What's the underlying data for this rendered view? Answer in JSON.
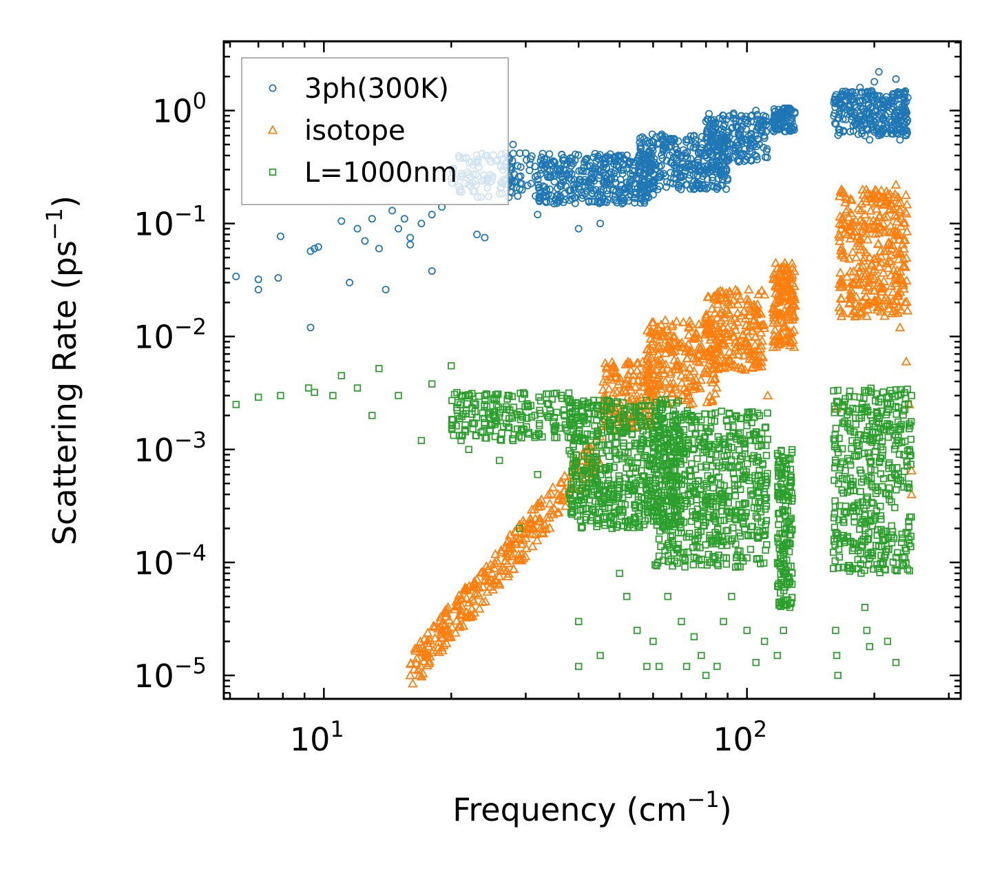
{
  "chart_data": {
    "type": "scatter",
    "title": "",
    "xlabel": "Frequency (cm",
    "xlabel_sup": "−1",
    "xlabel_suffix": ")",
    "ylabel": "Scattering Rate (ps",
    "ylabel_sup": "−1",
    "ylabel_suffix": ")",
    "xscale": "log",
    "yscale": "log",
    "xlim": [
      5.8,
      320
    ],
    "ylim": [
      6.2e-06,
      4.1
    ],
    "x_ticks": [
      {
        "base": "10",
        "exp": "1",
        "value": 10
      },
      {
        "base": "10",
        "exp": "2",
        "value": 100
      }
    ],
    "y_ticks": [
      {
        "base": "10",
        "exp": "0",
        "value": 1
      },
      {
        "base": "10",
        "exp": "−1",
        "value": 0.1
      },
      {
        "base": "10",
        "exp": "−2",
        "value": 0.01
      },
      {
        "base": "10",
        "exp": "−3",
        "value": 0.001
      },
      {
        "base": "10",
        "exp": "−4",
        "value": 0.0001
      },
      {
        "base": "10",
        "exp": "−5",
        "value": 1e-05
      }
    ],
    "legend": {
      "position": "top-left",
      "entries": [
        {
          "label": "3ph(300K)",
          "marker": "circle",
          "color": "#1f77b4"
        },
        {
          "label": "isotope",
          "marker": "triangle",
          "color": "#ff7f0e"
        },
        {
          "label": "L=1000nm",
          "marker": "square",
          "color": "#2ca02c"
        }
      ]
    },
    "series": [
      {
        "name": "3ph(300K)",
        "marker": "circle",
        "color": "#1f77b4",
        "points": [
          [
            6.2,
            0.034
          ],
          [
            7,
            0.032
          ],
          [
            7,
            0.026
          ],
          [
            7.8,
            0.033
          ],
          [
            7.9,
            0.077
          ],
          [
            9.3,
            0.012
          ],
          [
            9.3,
            0.057
          ],
          [
            9.5,
            0.06
          ],
          [
            9.7,
            0.062
          ],
          [
            11,
            0.105
          ],
          [
            11.5,
            0.03
          ],
          [
            12,
            0.09
          ],
          [
            12.5,
            0.07
          ],
          [
            13,
            0.11
          ],
          [
            13.5,
            0.06
          ],
          [
            14,
            0.026
          ],
          [
            14.5,
            0.13
          ],
          [
            15,
            0.09
          ],
          [
            15.5,
            0.11
          ],
          [
            16,
            0.065
          ],
          [
            16,
            0.075
          ],
          [
            17,
            0.1
          ],
          [
            18,
            0.038
          ],
          [
            18,
            0.12
          ],
          [
            19,
            0.14
          ],
          [
            20,
            0.25
          ],
          [
            21,
            0.2
          ],
          [
            22,
            0.22
          ],
          [
            23,
            0.08
          ],
          [
            24,
            0.075
          ],
          [
            25,
            0.25
          ],
          [
            27,
            0.35
          ],
          [
            28,
            0.5
          ],
          [
            30,
            0.42
          ],
          [
            32,
            0.12
          ],
          [
            35,
            0.15
          ],
          [
            40,
            0.09
          ],
          [
            45,
            0.1
          ],
          [
            50,
            0.2
          ],
          [
            60,
            0.18
          ],
          [
            70,
            0.4
          ],
          [
            80,
            0.8
          ],
          [
            90,
            0.25
          ],
          [
            95,
            0.7
          ],
          [
            105,
            1.0
          ],
          [
            120,
            0.95
          ],
          [
            125,
            0.72
          ],
          [
            165,
            1.25
          ],
          [
            170,
            0.95
          ],
          [
            180,
            0.9
          ],
          [
            185,
            1.6
          ],
          [
            190,
            0.6
          ],
          [
            195,
            0.55
          ],
          [
            200,
            1.8
          ],
          [
            205,
            2.2
          ],
          [
            215,
            1.2
          ],
          [
            220,
            0.7
          ],
          [
            225,
            1.9
          ],
          [
            230,
            0.55
          ],
          [
            240,
            1.3
          ]
        ],
        "bands": [
          {
            "x": [
              20,
              32
            ],
            "y": [
              0.17,
              0.42
            ],
            "n": 120
          },
          {
            "x": [
              32,
              60
            ],
            "y": [
              0.15,
              0.42
            ],
            "n": 360
          },
          {
            "x": [
              55,
              90
            ],
            "y": [
              0.2,
              0.62
            ],
            "n": 320
          },
          {
            "x": [
              80,
              112
            ],
            "y": [
              0.35,
              0.95
            ],
            "n": 200
          },
          {
            "x": [
              115,
              130
            ],
            "y": [
              0.65,
              1.05
            ],
            "n": 90
          },
          {
            "x": [
              160,
              240
            ],
            "y": [
              0.6,
              1.5
            ],
            "n": 280
          }
        ]
      },
      {
        "name": "isotope",
        "marker": "triangle",
        "color": "#ff7f0e",
        "points": [
          [
            16,
            1e-05
          ],
          [
            18,
            1.6e-05
          ],
          [
            19,
            2.5e-05
          ],
          [
            21,
            3.5e-05
          ],
          [
            23,
            6e-05
          ],
          [
            25,
            8e-05
          ],
          [
            27,
            0.00012
          ],
          [
            29,
            0.00016
          ],
          [
            31,
            0.0002
          ],
          [
            33,
            0.00018
          ],
          [
            35,
            0.0003
          ],
          [
            38,
            0.00045
          ],
          [
            41,
            0.0008
          ],
          [
            45,
            0.0013
          ],
          [
            50,
            0.004
          ],
          [
            55,
            0.005
          ],
          [
            60,
            0.003
          ],
          [
            65,
            0.008
          ],
          [
            70,
            0.0045
          ],
          [
            75,
            0.01
          ],
          [
            80,
            0.015
          ],
          [
            85,
            0.008
          ],
          [
            90,
            0.02
          ],
          [
            95,
            0.025
          ],
          [
            100,
            0.009
          ],
          [
            105,
            0.006
          ],
          [
            112,
            0.003
          ],
          [
            118,
            0.04
          ],
          [
            122,
            0.012
          ],
          [
            128,
            0.035
          ],
          [
            163,
            0.0023
          ],
          [
            165,
            0.08
          ],
          [
            170,
            0.05
          ],
          [
            175,
            0.02
          ],
          [
            180,
            0.015
          ],
          [
            185,
            0.03
          ],
          [
            190,
            0.12
          ],
          [
            195,
            0.05
          ],
          [
            200,
            0.02
          ],
          [
            205,
            0.03
          ],
          [
            210,
            0.1
          ],
          [
            215,
            0.18
          ],
          [
            220,
            0.15
          ],
          [
            225,
            0.22
          ],
          [
            230,
            0.012
          ],
          [
            238,
            0.006
          ],
          [
            242,
            0.0025
          ],
          [
            245,
            0.0004
          ],
          [
            245,
            0.00065
          ]
        ],
        "bands": [
          {
            "x": [
              16,
              45
            ],
            "y": [
              1.1e-05,
              0.001
            ],
            "n": 300,
            "trend": true
          },
          {
            "x": [
              45,
              60
            ],
            "y": [
              0.0015,
              0.006
            ],
            "n": 140
          },
          {
            "x": [
              58,
              85
            ],
            "y": [
              0.0025,
              0.014
            ],
            "n": 220
          },
          {
            "x": [
              80,
              110
            ],
            "y": [
              0.005,
              0.026
            ],
            "n": 200
          },
          {
            "x": [
              115,
              130
            ],
            "y": [
              0.008,
              0.045
            ],
            "n": 140
          },
          {
            "x": [
              165,
              240
            ],
            "y": [
              0.015,
              0.2
            ],
            "n": 320
          }
        ]
      },
      {
        "name": "L=1000nm",
        "marker": "square",
        "color": "#2ca02c",
        "points": [
          [
            6.2,
            0.0025
          ],
          [
            7,
            0.0029
          ],
          [
            7.9,
            0.003
          ],
          [
            9.2,
            0.0035
          ],
          [
            9.5,
            0.0032
          ],
          [
            10.5,
            0.003
          ],
          [
            11,
            0.0045
          ],
          [
            12,
            0.0035
          ],
          [
            13,
            0.002
          ],
          [
            13.5,
            0.0052
          ],
          [
            15,
            0.003
          ],
          [
            17,
            0.0012
          ],
          [
            18,
            0.0038
          ],
          [
            20,
            0.0055
          ],
          [
            22,
            0.001
          ],
          [
            24,
            0.003
          ],
          [
            26,
            0.0008
          ],
          [
            28,
            0.0012
          ],
          [
            29,
            0.0002
          ],
          [
            32,
            0.0006
          ],
          [
            35,
            0.0015
          ],
          [
            38,
            0.0004
          ],
          [
            40,
            3e-05
          ],
          [
            40,
            1.2e-05
          ],
          [
            45,
            1.5e-05
          ],
          [
            48,
            0.0002
          ],
          [
            50,
            8e-05
          ],
          [
            52,
            5e-05
          ],
          [
            55,
            2.5e-05
          ],
          [
            58,
            1.2e-05
          ],
          [
            60,
            2e-05
          ],
          [
            62,
            1.2e-05
          ],
          [
            65,
            5e-05
          ],
          [
            70,
            3e-05
          ],
          [
            72,
            1.2e-05
          ],
          [
            75,
            2.2e-05
          ],
          [
            78,
            1.5e-05
          ],
          [
            80,
            1e-05
          ],
          [
            85,
            1.2e-05
          ],
          [
            88,
            3e-05
          ],
          [
            92,
            5e-05
          ],
          [
            100,
            2.5e-05
          ],
          [
            105,
            1.3e-05
          ],
          [
            110,
            2e-05
          ],
          [
            118,
            1.5e-05
          ],
          [
            122,
            2.5e-05
          ],
          [
            162,
            2.5e-05
          ],
          [
            163,
            1.5e-05
          ],
          [
            164,
            1e-05
          ],
          [
            170,
            0.00015
          ],
          [
            175,
            9e-05
          ],
          [
            190,
            4e-05
          ],
          [
            192,
            2.5e-05
          ],
          [
            195,
            1.8e-05
          ],
          [
            210,
            0.0001
          ],
          [
            215,
            2e-05
          ],
          [
            225,
            1.3e-05
          ],
          [
            240,
            0.00018
          ],
          [
            242,
            0.001
          ],
          [
            245,
            0.003
          ]
        ],
        "bands": [
          {
            "x": [
              20,
              40
            ],
            "y": [
              0.0012,
              0.0032
            ],
            "n": 200
          },
          {
            "x": [
              38,
              70
            ],
            "y": [
              0.0002,
              0.0028
            ],
            "n": 600
          },
          {
            "x": [
              60,
              112
            ],
            "y": [
              9e-05,
              0.0022
            ],
            "n": 600
          },
          {
            "x": [
              118,
              128
            ],
            "y": [
              4e-05,
              0.001
            ],
            "n": 160
          },
          {
            "x": [
              160,
              245
            ],
            "y": [
              8e-05,
              0.0035
            ],
            "n": 420
          }
        ]
      }
    ]
  }
}
